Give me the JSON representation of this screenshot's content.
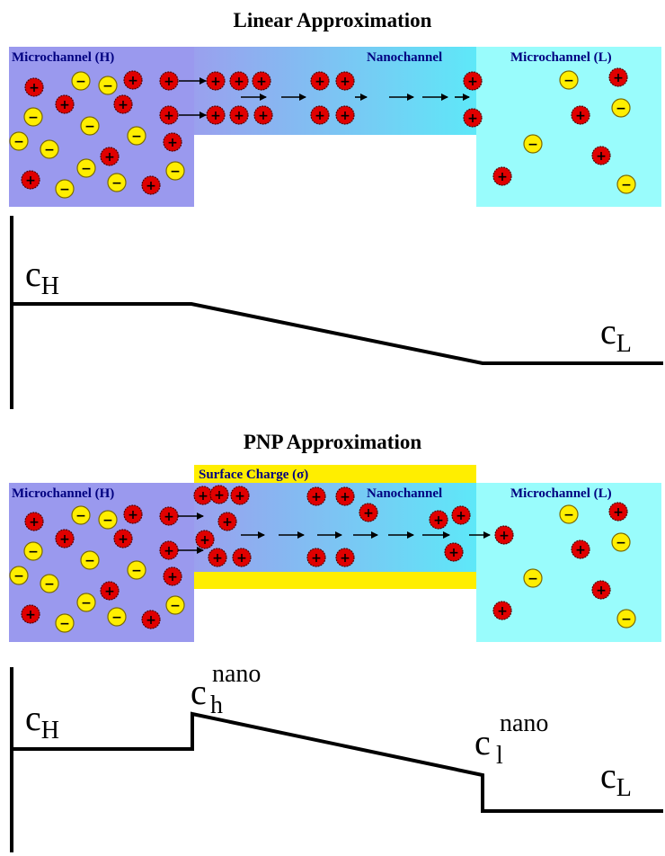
{
  "panels": [
    {
      "title": "Linear Approximation",
      "labels": {
        "left_micro": "Microchannel (H)",
        "nano": "Nanochannel",
        "right_micro": "Microchannel (L)"
      },
      "profile": {
        "left": "c",
        "left_sub": "H",
        "right": "c",
        "right_sub": "L"
      }
    },
    {
      "title": "PNP Approximation",
      "surface_charge": "Surface Charge (σ)",
      "labels": {
        "left_micro": "Microchannel (H)",
        "nano": "Nanochannel",
        "right_micro": "Microchannel (L)"
      },
      "profile": {
        "left": "c",
        "left_sub": "H",
        "nano_h": "c",
        "nano_h_sub": "h",
        "nano_h_sup": "nano",
        "nano_l": "c",
        "nano_l_sub": "l",
        "nano_l_sup": "nano",
        "right": "c",
        "right_sub": "L"
      }
    }
  ],
  "ion_symbols": {
    "cation": "+",
    "anion": "−"
  },
  "colors": {
    "high_reservoir": "#9999ee",
    "low_reservoir": "#99ffff",
    "cation": "#e00000",
    "anion": "#ffee00",
    "surface_charge": "#ffee00",
    "profile_line": "#000000"
  }
}
